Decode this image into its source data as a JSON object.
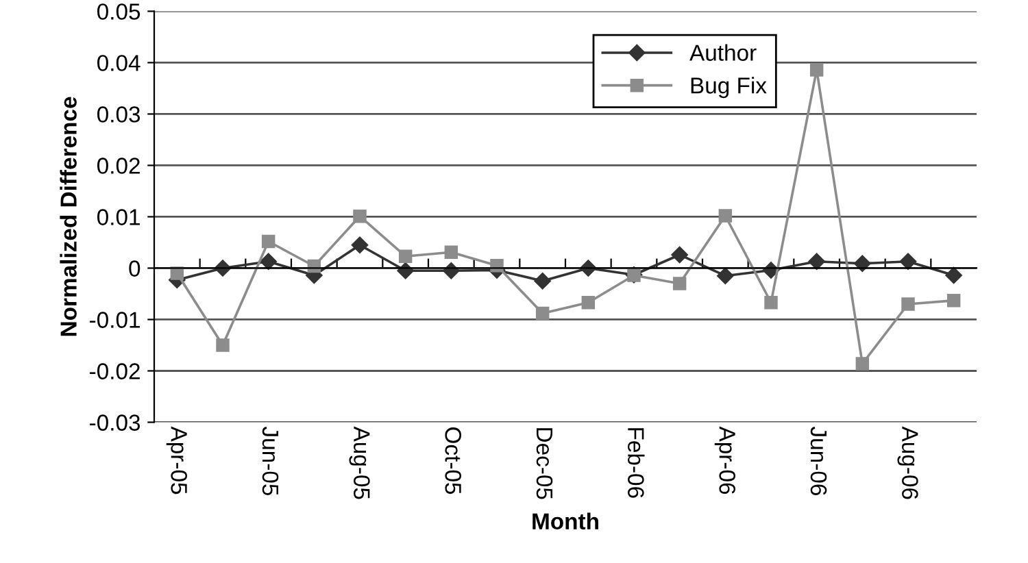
{
  "chart_data": {
    "type": "line",
    "xlabel": "Month",
    "ylabel": "Normalized Difference",
    "categories": [
      "Apr-05",
      null,
      "Jun-05",
      null,
      "Aug-05",
      null,
      "Oct-05",
      null,
      "Dec-05",
      null,
      "Feb-06",
      null,
      "Apr-06",
      null,
      "Jun-06",
      null,
      "Aug-06",
      null
    ],
    "series": [
      {
        "name": "Author",
        "color": "#333333",
        "marker": "diamond",
        "values": [
          -0.0023,
          0.0,
          0.0013,
          -0.0014,
          0.0045,
          -0.0005,
          -0.0005,
          -0.0004,
          -0.0025,
          0.0,
          -0.0013,
          0.0026,
          -0.0015,
          -0.0004,
          0.0013,
          0.0009,
          0.0013,
          -0.0014
        ]
      },
      {
        "name": "Bug Fix",
        "color": "#8c8c8c",
        "marker": "square",
        "values": [
          -0.001,
          -0.015,
          0.0052,
          0.0004,
          0.0101,
          0.0023,
          0.0031,
          0.0005,
          -0.0088,
          -0.0067,
          -0.0014,
          -0.003,
          0.0102,
          -0.0067,
          0.0386,
          -0.0186,
          -0.007,
          -0.0063
        ]
      }
    ],
    "ylim": [
      -0.03,
      0.05
    ],
    "yticks": [
      {
        "value": -0.03,
        "label": "-0.03"
      },
      {
        "value": -0.02,
        "label": "-0.02"
      },
      {
        "value": -0.01,
        "label": "-0.01"
      },
      0,
      {
        "value": 0.01,
        "label": "0.01"
      },
      {
        "value": 0.02,
        "label": "0.02"
      },
      {
        "value": 0.03,
        "label": "0.03"
      },
      {
        "value": 0.04,
        "label": "0.04"
      },
      {
        "value": 0.05,
        "label": "0.05"
      }
    ],
    "grid": "y",
    "legend": "top right",
    "line_style": "solid"
  }
}
